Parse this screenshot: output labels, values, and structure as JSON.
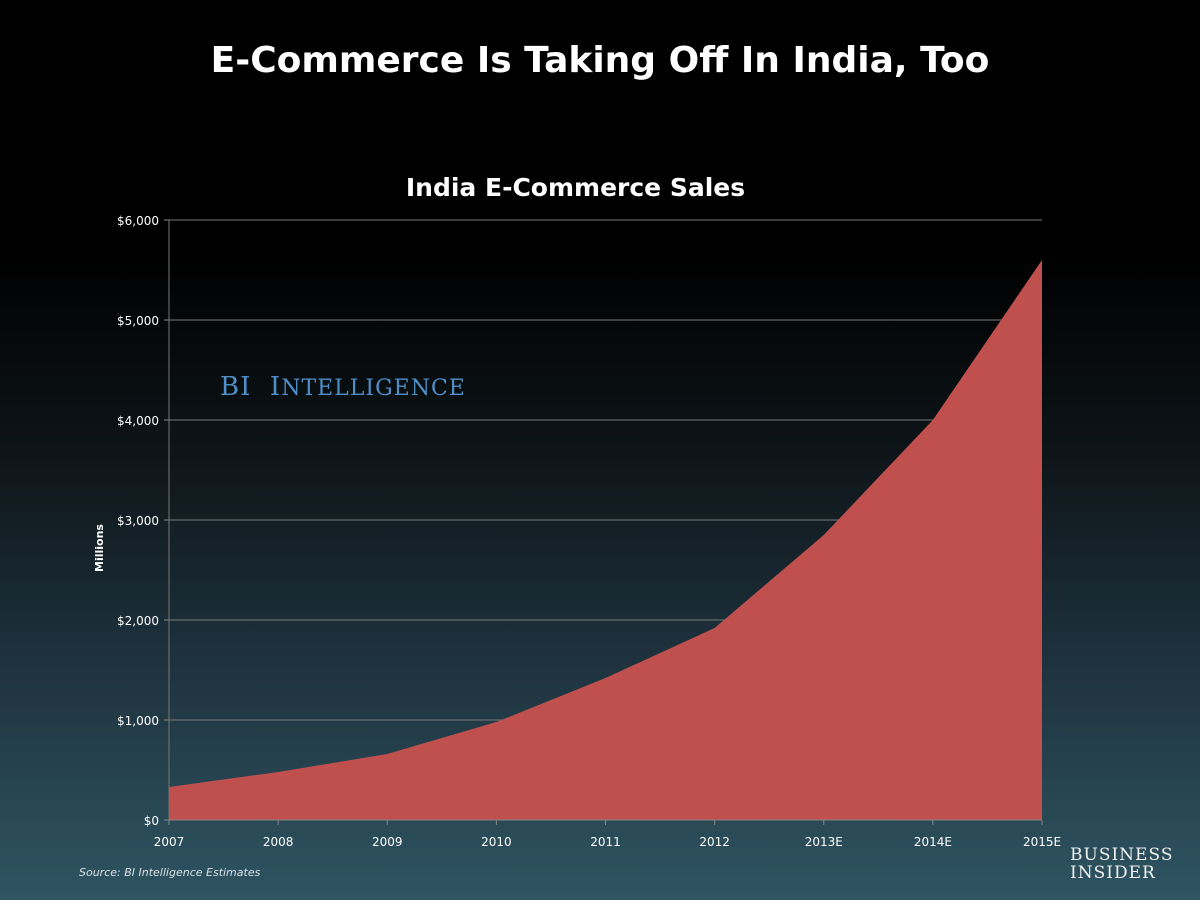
{
  "page_title": "E-Commerce Is Taking Off In India, Too",
  "watermark": "BI Intelligence",
  "source": "Source: BI Intelligence Estimates",
  "logo": [
    "Business",
    "Insider"
  ],
  "colors": {
    "area": "#c0504d",
    "grid": "#7a7a7a"
  },
  "chart_data": {
    "type": "area",
    "title": "India E-Commerce Sales",
    "xlabel": "",
    "ylabel": "Millions",
    "categories": [
      "2007",
      "2008",
      "2009",
      "2010",
      "2011",
      "2012",
      "2013E",
      "2014E",
      "2015E"
    ],
    "values": [
      330,
      480,
      660,
      980,
      1420,
      1920,
      2850,
      4000,
      5600
    ],
    "ylim": [
      0,
      6000
    ],
    "yticks": [
      0,
      1000,
      2000,
      3000,
      4000,
      5000,
      6000
    ],
    "ytick_labels": [
      "$0",
      "$1,000",
      "$2,000",
      "$3,000",
      "$4,000",
      "$5,000",
      "$6,000"
    ],
    "grid": true,
    "legend": "none"
  }
}
